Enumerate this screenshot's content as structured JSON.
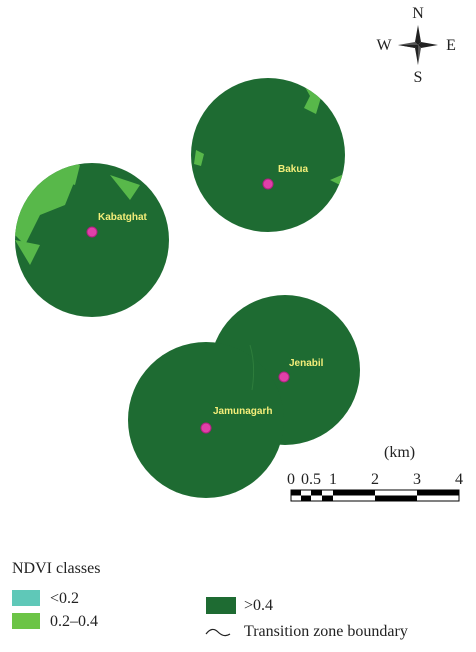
{
  "compass": {
    "north": "N",
    "west": "W",
    "east": "E",
    "south": "S"
  },
  "places": [
    {
      "label": "Bakua"
    },
    {
      "label": "Kabatghat"
    },
    {
      "label": "Jenabil"
    },
    {
      "label": "Jamunagarh"
    }
  ],
  "scale_bar": {
    "unit": "(km)",
    "ticks": [
      0,
      0.5,
      1,
      2,
      3,
      4
    ]
  },
  "legend": {
    "title": "NDVI classes",
    "items": [
      {
        "label": "<0.2"
      },
      {
        "label": "0.2–0.4"
      },
      {
        "label": ">0.4"
      },
      {
        "label": "Transition zone boundary"
      }
    ]
  }
}
